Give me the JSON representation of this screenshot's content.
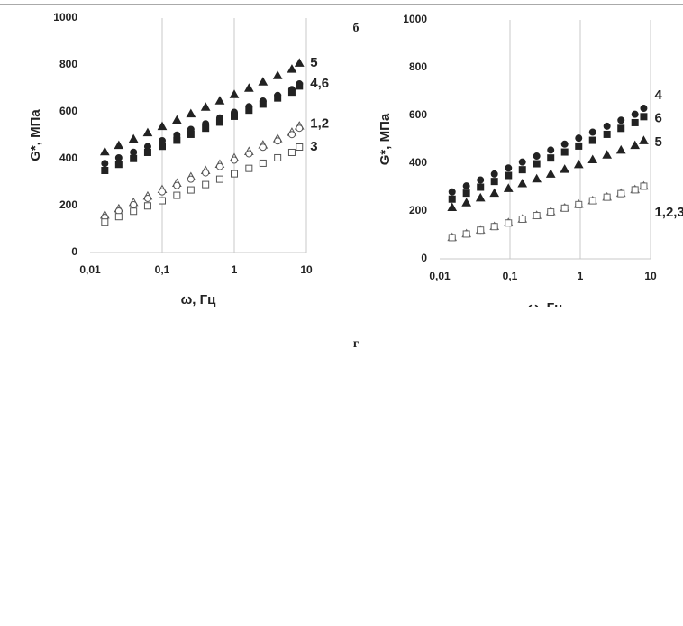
{
  "chart_data": [
    {
      "type": "scatter",
      "xlog": true,
      "grid": "x",
      "xlabel": "ω, Гц",
      "ylabel": "G*, МПа",
      "xlim": [
        0.01,
        10
      ],
      "ylim": [
        0,
        1000
      ],
      "xticks": [
        {
          "value": 0.01,
          "label": "0,01"
        },
        {
          "value": 0.1,
          "label": "0,1"
        },
        1,
        10
      ],
      "yticks": [
        0,
        200,
        400,
        600,
        800,
        1000
      ],
      "x": [
        0.016,
        0.025,
        0.04,
        0.063,
        0.1,
        0.16,
        0.25,
        0.4,
        0.63,
        1,
        1.6,
        2.5,
        4,
        6.3,
        8
      ],
      "series": [
        {
          "label": "5",
          "marker": "triangle",
          "filled": true,
          "color": "#222",
          "values": [
            430,
            457,
            484,
            511,
            538,
            565,
            592,
            620,
            647,
            674,
            701,
            728,
            755,
            782,
            808
          ]
        },
        {
          "label": "4,6",
          "marker": "circle",
          "filled": true,
          "color": "#222",
          "values": [
            380,
            404,
            428,
            452,
            477,
            501,
            525,
            549,
            574,
            598,
            622,
            646,
            670,
            695,
            719
          ]
        },
        {
          "marker": "square",
          "filled": true,
          "color": "#222",
          "values": [
            350,
            376,
            401,
            427,
            453,
            479,
            504,
            530,
            556,
            581,
            607,
            633,
            659,
            684,
            710
          ]
        },
        {
          "label": "1,2",
          "marker": "triangle",
          "filled": false,
          "color": "#555",
          "values": [
            160,
            187,
            214,
            241,
            269,
            296,
            323,
            350,
            377,
            404,
            431,
            459,
            486,
            513,
            540
          ]
        },
        {
          "marker": "circle",
          "filled": false,
          "color": "#555",
          "values": [
            150,
            177,
            204,
            231,
            259,
            286,
            313,
            340,
            367,
            394,
            421,
            449,
            476,
            503,
            530
          ]
        },
        {
          "label": "3",
          "marker": "square",
          "filled": false,
          "color": "#555",
          "values": [
            130,
            153,
            176,
            199,
            221,
            244,
            267,
            290,
            313,
            336,
            359,
            381,
            404,
            427,
            450
          ]
        }
      ]
    },
    {
      "type": "scatter",
      "xlog": true,
      "grid": "x",
      "xlabel": "ω, Гц",
      "ylabel": "G*, МПа",
      "xlim": [
        0.01,
        10
      ],
      "ylim": [
        0,
        1000
      ],
      "xticks": [
        {
          "value": 0.01,
          "label": "0,01"
        },
        {
          "value": 0.1,
          "label": "0,1"
        },
        1,
        10
      ],
      "yticks": [
        0,
        200,
        400,
        600,
        800,
        1000
      ],
      "x": [
        0.015,
        0.024,
        0.038,
        0.06,
        0.095,
        0.15,
        0.24,
        0.38,
        0.6,
        0.95,
        1.5,
        2.4,
        3.8,
        6,
        8
      ],
      "series": [
        {
          "label": "4",
          "marker": "circle",
          "filled": true,
          "color": "#222",
          "values": [
            280,
            305,
            330,
            355,
            380,
            405,
            430,
            455,
            480,
            505,
            530,
            555,
            580,
            605,
            630
          ]
        },
        {
          "label": "6",
          "marker": "square",
          "filled": true,
          "color": "#222",
          "values": [
            250,
            275,
            300,
            324,
            349,
            373,
            398,
            422,
            447,
            472,
            496,
            521,
            546,
            570,
            595
          ]
        },
        {
          "label": "5",
          "marker": "triangle",
          "filled": true,
          "color": "#222",
          "values": [
            215,
            235,
            255,
            275,
            295,
            315,
            335,
            355,
            375,
            395,
            415,
            435,
            455,
            475,
            495
          ]
        },
        {
          "label": "1,2,3",
          "marker": "triangle",
          "filled": false,
          "color": "#666",
          "values": [
            90,
            105,
            121,
            136,
            152,
            167,
            182,
            198,
            213,
            229,
            244,
            259,
            275,
            290,
            305
          ]
        },
        {
          "marker": "circle",
          "filled": false,
          "color": "#666",
          "values": [
            90,
            105,
            120,
            136,
            151,
            167,
            182,
            197,
            213,
            228,
            244,
            259,
            274,
            290,
            305
          ]
        },
        {
          "marker": "square",
          "filled": false,
          "color": "#666",
          "values": [
            89,
            104,
            120,
            135,
            150,
            166,
            181,
            196,
            212,
            227,
            243,
            258,
            273,
            289,
            304
          ]
        }
      ]
    }
  ],
  "panel_labels": [
    "б",
    "г"
  ]
}
